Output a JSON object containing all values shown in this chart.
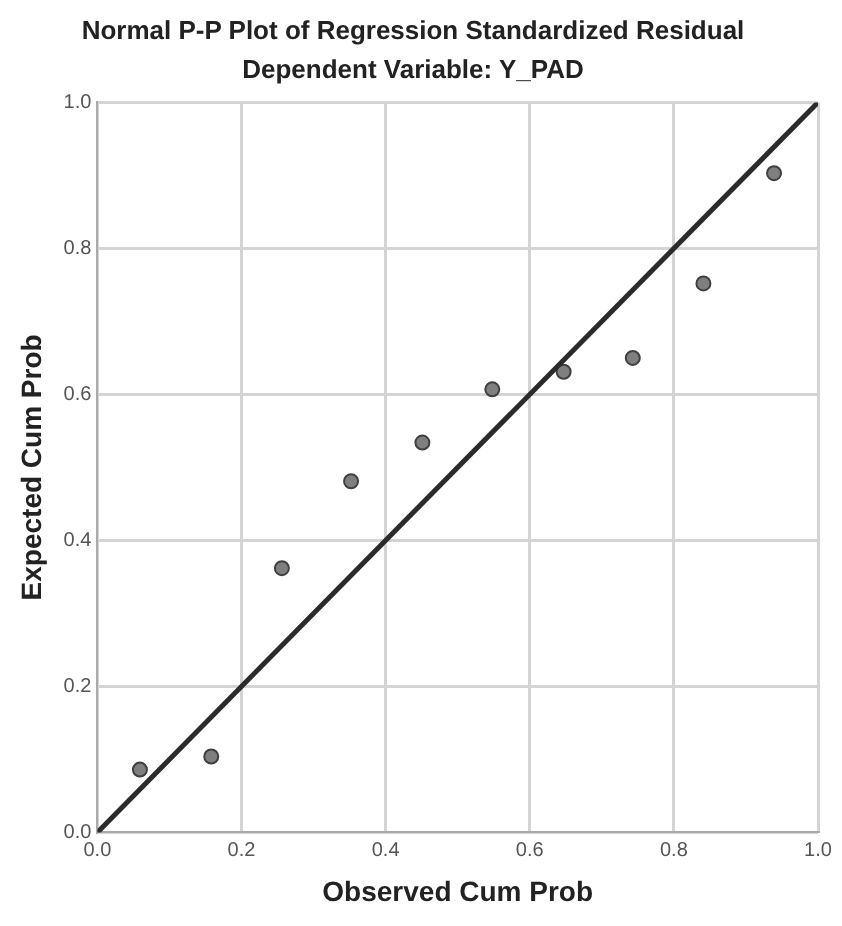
{
  "chart_data": {
    "type": "scatter",
    "title": "Normal P-P Plot of Regression Standardized Residual",
    "subtitle": "Dependent Variable: Y_PAD",
    "xlabel": "Observed Cum Prob",
    "ylabel": "Expected Cum Prob",
    "x": [
      0.059,
      0.158,
      0.256,
      0.352,
      0.451,
      0.548,
      0.647,
      0.743,
      0.841,
      0.939
    ],
    "series": [
      {
        "color": "#7f7f7f",
        "marker": "circle",
        "values": [
          0.086,
          0.104,
          0.362,
          0.481,
          0.534,
          0.607,
          0.631,
          0.65,
          0.752,
          0.903
        ]
      },
      {
        "type": "line",
        "color": "#2b2b2b",
        "marker": "none",
        "x": [
          0,
          1
        ],
        "values": [
          0,
          1
        ]
      }
    ],
    "xlim": [
      0,
      1
    ],
    "ylim": [
      0,
      1
    ],
    "xticks": [
      {
        "value": 0,
        "label": "0.0"
      },
      {
        "value": 0.2,
        "label": "0.2"
      },
      {
        "value": 0.4,
        "label": "0.4"
      },
      {
        "value": 0.6,
        "label": "0.6"
      },
      {
        "value": 0.8,
        "label": "0.8"
      },
      {
        "value": 1,
        "label": "1.0"
      }
    ],
    "yticks": [
      {
        "value": 0,
        "label": "0.0"
      },
      {
        "value": 0.2,
        "label": "0.2"
      },
      {
        "value": 0.4,
        "label": "0.4"
      },
      {
        "value": 0.6,
        "label": "0.6"
      },
      {
        "value": 0.8,
        "label": "0.8"
      },
      {
        "value": 1,
        "label": "1.0"
      }
    ],
    "grid": true,
    "legend": false
  }
}
